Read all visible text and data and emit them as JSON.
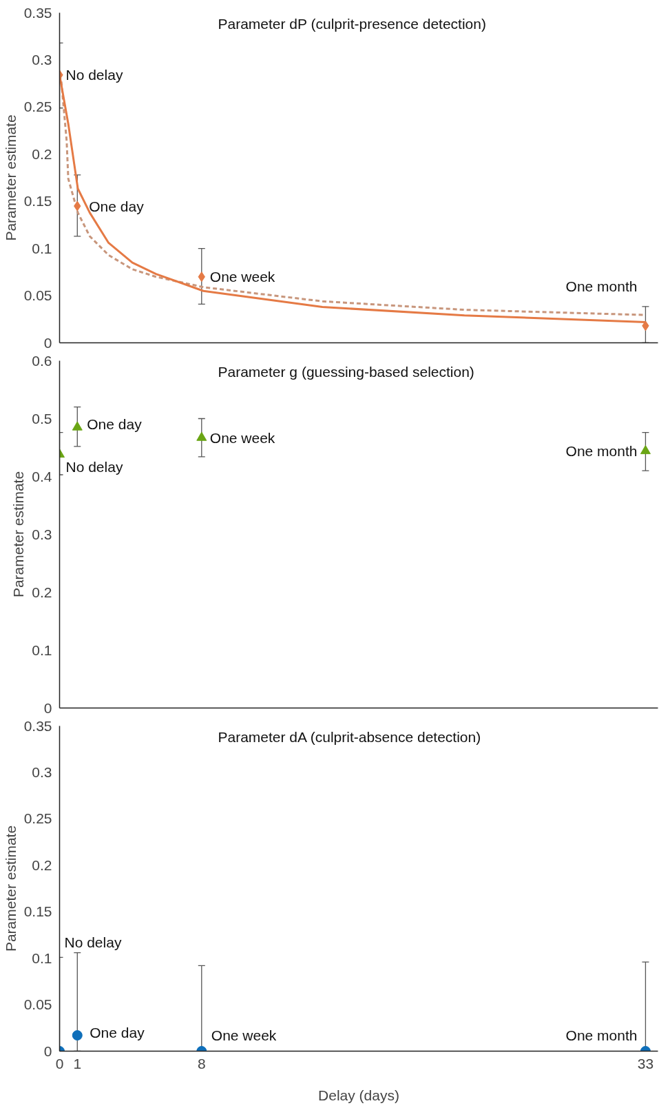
{
  "chart_data": [
    {
      "type": "scatter",
      "title": "Parameter dP (culprit-presence detection)",
      "ylabel": "Parameter estimate",
      "xlim": [
        0,
        33.7
      ],
      "ylim": [
        0,
        0.35
      ],
      "yticks": [
        0,
        0.05,
        0.1,
        0.15,
        0.2,
        0.25,
        0.3,
        0.35
      ],
      "tick_labels": "y",
      "series": [
        {
          "type": "line",
          "color": "#c8967c",
          "line_style": "dashed",
          "x": [
            0,
            0.1,
            0.4,
            0.49,
            1.03,
            1.7,
            2.76,
            4.1,
            5.43,
            8.1,
            14.8,
            22.8,
            33
          ],
          "values": [
            0.284,
            0.277,
            0.214,
            0.174,
            0.138,
            0.113,
            0.093,
            0.078,
            0.07,
            0.059,
            0.044,
            0.035,
            0.0295
          ]
        },
        {
          "type": "line",
          "color": "#e57a45",
          "line_style": "solid",
          "x": [
            0,
            0.5,
            1.03,
            1.7,
            2.76,
            4.1,
            5.43,
            8.1,
            14.8,
            22.8,
            33
          ],
          "values": [
            0.284,
            0.231,
            0.1635,
            0.138,
            0.106,
            0.085,
            0.073,
            0.055,
            0.038,
            0.029,
            0.022
          ]
        },
        {
          "marker": "diamond",
          "color": "#e57a45",
          "x": [
            0,
            1,
            8,
            33
          ],
          "values": [
            0.284,
            0.145,
            0.07,
            0.018
          ],
          "errors": [
            [
              0.249,
              0.318
            ],
            [
              0.113,
              0.178
            ],
            [
              0.041,
              0.1
            ],
            [
              0,
              0.0385
            ]
          ]
        }
      ],
      "annotations": [
        {
          "text": "No delay",
          "x": 0,
          "y": 0.284
        },
        {
          "text": "One day",
          "x": 1,
          "y": 0.145
        },
        {
          "text": "One week",
          "x": 8,
          "y": 0.07
        },
        {
          "text": "One month",
          "x": 33,
          "y": 0.018
        }
      ]
    },
    {
      "type": "scatter",
      "title": "Parameter g (guessing-based selection)",
      "ylabel": "Parameter estimate",
      "xlim": [
        0,
        33.7
      ],
      "ylim": [
        0,
        0.6
      ],
      "yticks": [
        0,
        0.1,
        0.2,
        0.3,
        0.4,
        0.5,
        0.6
      ],
      "tick_labels": "y",
      "series": [
        {
          "marker": "triangle",
          "color": "#6aa514",
          "x": [
            0,
            1,
            8,
            33
          ],
          "values": [
            0.438,
            0.485,
            0.467,
            0.444
          ],
          "errors": [
            [
              0.403,
              0.476
            ],
            [
              0.452,
              0.52
            ],
            [
              0.434,
              0.5
            ],
            [
              0.41,
              0.476
            ]
          ]
        }
      ],
      "annotations": [
        {
          "text": "No delay",
          "x": 0,
          "y": 0.438
        },
        {
          "text": "One day",
          "x": 1,
          "y": 0.485
        },
        {
          "text": "One week",
          "x": 8,
          "y": 0.467
        },
        {
          "text": "One month",
          "x": 33,
          "y": 0.444
        }
      ]
    },
    {
      "type": "scatter",
      "title": "Parameter dA (culprit-absence detection)",
      "ylabel": "Parameter estimate",
      "xlabel": "Delay (days)",
      "xlim": [
        0,
        33.7
      ],
      "ylim": [
        0,
        0.35
      ],
      "xticks": [
        0,
        1,
        8,
        33
      ],
      "yticks": [
        0,
        0.05,
        0.1,
        0.15,
        0.2,
        0.25,
        0.3,
        0.35
      ],
      "series": [
        {
          "marker": "circle",
          "color": "#0f6fba",
          "x": [
            0,
            1,
            8,
            33
          ],
          "values": [
            0,
            0.017,
            0,
            0
          ],
          "errors": [
            [
              0,
              0.101
            ],
            [
              0,
              0.106
            ],
            [
              0,
              0.092
            ],
            [
              0,
              0.096
            ]
          ]
        }
      ],
      "annotations": [
        {
          "text": "No delay",
          "x": 0,
          "y": 0.101
        },
        {
          "text": "One day",
          "x": 1,
          "y": 0.017
        },
        {
          "text": "One week",
          "x": 8,
          "y": 0
        },
        {
          "text": "One month",
          "x": 33,
          "y": 0
        }
      ]
    }
  ]
}
